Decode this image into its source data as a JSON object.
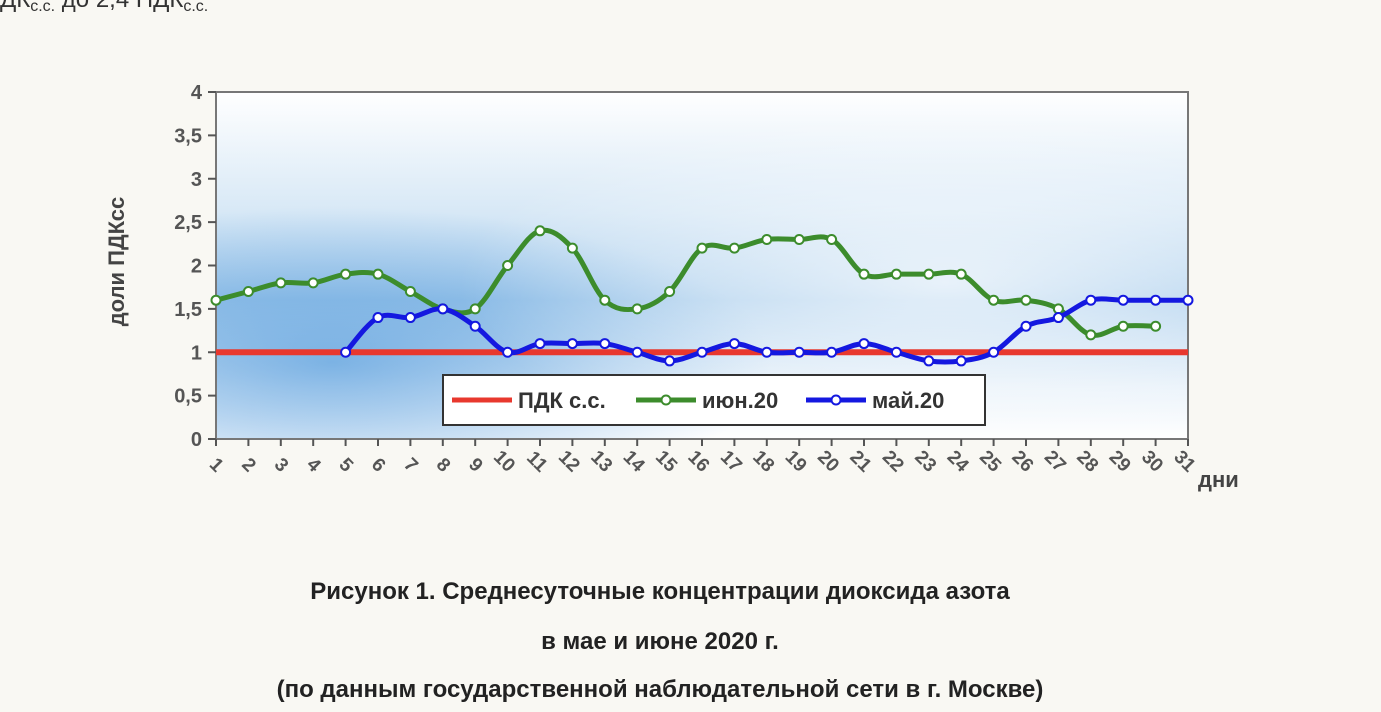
{
  "top_text": {
    "prefix": "ДК",
    "sub1": "с.с.",
    "middle": " до 2,4 ПДК",
    "sub2": "с.с."
  },
  "caption": {
    "line1": "Рисунок 1. Среднесуточные концентрации диоксида азота",
    "line2": "в мае и июне 2020 г.",
    "line3": "(по данным государственной наблюдательной сети в г. Москве)"
  },
  "chart_data": {
    "type": "line",
    "title": "",
    "ylabel": "доли ПДКсс",
    "xlabel": "дни",
    "ylim": [
      0,
      4
    ],
    "xlim": [
      1,
      31
    ],
    "y_ticks": [
      "0",
      "0,5",
      "1",
      "1,5",
      "2",
      "2,5",
      "3",
      "3,5",
      "4"
    ],
    "y_tick_values": [
      0,
      0.5,
      1,
      1.5,
      2,
      2.5,
      3,
      3.5,
      4
    ],
    "x_ticks": [
      "1",
      "2",
      "3",
      "4",
      "5",
      "6",
      "7",
      "8",
      "9",
      "10",
      "11",
      "12",
      "13",
      "14",
      "15",
      "16",
      "17",
      "18",
      "19",
      "20",
      "21",
      "22",
      "23",
      "24",
      "25",
      "26",
      "27",
      "28",
      "29",
      "30",
      "31"
    ],
    "legend_position": "bottom-center inside plot",
    "series": [
      {
        "name": "ПДК с.с.",
        "color": "#e8382e",
        "markers": false,
        "x": [
          1,
          31
        ],
        "values": [
          1,
          1
        ]
      },
      {
        "name": "июн.20",
        "color": "#3c8c2c",
        "markers": true,
        "x": [
          1,
          2,
          3,
          4,
          5,
          6,
          7,
          8,
          9,
          10,
          11,
          12,
          13,
          14,
          15,
          16,
          17,
          18,
          19,
          20,
          21,
          22,
          23,
          24,
          25,
          26,
          27,
          28,
          29,
          30
        ],
        "values": [
          1.6,
          1.7,
          1.8,
          1.8,
          1.9,
          1.9,
          1.7,
          1.5,
          1.5,
          2.0,
          2.4,
          2.2,
          1.6,
          1.5,
          1.7,
          2.2,
          2.2,
          2.3,
          2.3,
          2.3,
          1.9,
          1.9,
          1.9,
          1.9,
          1.6,
          1.6,
          1.5,
          1.2,
          1.3,
          1.3
        ]
      },
      {
        "name": "май.20",
        "color": "#1418e0",
        "markers": true,
        "x": [
          5,
          6,
          7,
          8,
          9,
          10,
          11,
          12,
          13,
          14,
          15,
          16,
          17,
          18,
          19,
          20,
          21,
          22,
          23,
          24,
          25,
          26,
          27,
          28,
          29,
          30,
          31
        ],
        "values": [
          1.0,
          1.4,
          1.4,
          1.5,
          1.3,
          1.0,
          1.1,
          1.1,
          1.1,
          1.0,
          0.9,
          1.0,
          1.1,
          1.0,
          1.0,
          1.0,
          1.1,
          1.0,
          0.9,
          0.9,
          1.0,
          1.3,
          1.4,
          1.6,
          1.6,
          1.6,
          1.6
        ]
      }
    ]
  }
}
